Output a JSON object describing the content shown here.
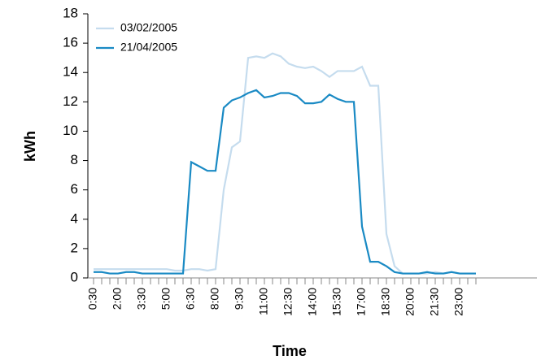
{
  "chart_data": {
    "type": "line",
    "x_label": "Time",
    "y_label": "kWh",
    "categories": [
      "0:30",
      null,
      null,
      "2:00",
      null,
      null,
      "3:30",
      null,
      null,
      "5:00",
      null,
      null,
      "6:30",
      null,
      null,
      "8:00",
      null,
      null,
      "9:30",
      null,
      null,
      "11:00",
      null,
      null,
      "12:30",
      null,
      null,
      "14:00",
      null,
      null,
      "15:30",
      null,
      null,
      "17:00",
      null,
      null,
      "18:30",
      null,
      null,
      "20:00",
      null,
      null,
      "21:30",
      null,
      null,
      "23:00",
      null,
      null
    ],
    "series": [
      {
        "name": "03/02/2005",
        "color": "#c5dcee",
        "values": [
          0.6,
          0.6,
          0.6,
          0.6,
          0.6,
          0.6,
          0.6,
          0.6,
          0.6,
          0.6,
          0.5,
          0.5,
          0.6,
          0.6,
          0.5,
          0.6,
          6.0,
          8.9,
          9.3,
          15.0,
          15.1,
          15.0,
          15.3,
          15.1,
          14.6,
          14.4,
          14.3,
          14.4,
          14.1,
          13.7,
          14.1,
          14.1,
          14.1,
          14.4,
          13.1,
          13.1,
          3.0,
          0.8,
          0.3,
          0.3,
          0.3,
          0.3,
          0.4,
          0.3,
          0.4,
          0.3,
          0.3,
          0.3
        ]
      },
      {
        "name": "21/04/2005",
        "color": "#1a8ac4",
        "values": [
          0.4,
          0.4,
          0.3,
          0.3,
          0.4,
          0.4,
          0.3,
          0.3,
          0.3,
          0.3,
          0.3,
          0.3,
          7.9,
          7.6,
          7.3,
          7.3,
          11.6,
          12.1,
          12.3,
          12.6,
          12.8,
          12.3,
          12.4,
          12.6,
          12.6,
          12.4,
          11.9,
          11.9,
          12.0,
          12.5,
          12.2,
          12.0,
          12.0,
          3.5,
          1.1,
          1.1,
          0.8,
          0.4,
          0.3,
          0.3,
          0.3,
          0.4,
          0.3,
          0.3,
          0.4,
          0.3,
          0.3,
          0.3
        ]
      }
    ],
    "ylim": [
      0,
      18
    ],
    "yticks": [
      0,
      2,
      4,
      6,
      8,
      10,
      12,
      14,
      16,
      18
    ]
  }
}
